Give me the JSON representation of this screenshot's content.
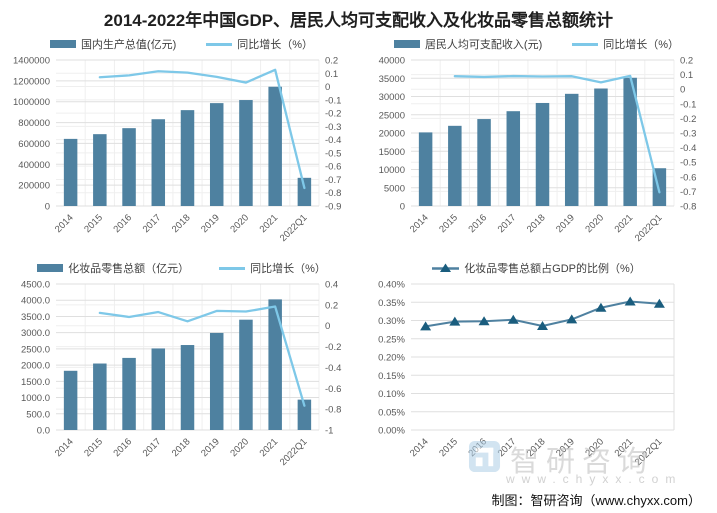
{
  "title": "2014-2022年中国GDP、居民人均可支配收入及化妆品零售总额统计",
  "caption": "制图：智研咨询（www.chyxx.com）",
  "watermark": {
    "brand": "智研咨询",
    "url": "www.chyxx.com"
  },
  "colors": {
    "bar": "#4e81a0",
    "line": "#7ec8e8",
    "ratio_line": "#4f81a0",
    "marker": "#1a5d7e",
    "grid": "#dfdfdf",
    "grid_light": "#efefef",
    "axis_text": "#595959",
    "title_text": "#1f1f1f",
    "watermark_logo": "#aecfe7"
  },
  "chart_data": [
    {
      "id": "gdp",
      "type": "bar",
      "title": "国内生产总值及同比增长",
      "vgrid": true,
      "legend": [
        {
          "type": "bar",
          "label": "国内生产总值(亿元)"
        },
        {
          "type": "line",
          "label": "同比增长（%）"
        }
      ],
      "categories": [
        "2014",
        "2015",
        "2016",
        "2017",
        "2018",
        "2019",
        "2020",
        "2021",
        "2022Q1"
      ],
      "bars": [
        643563,
        688858,
        746395,
        832036,
        919281,
        986515,
        1015986,
        1143670,
        270178
      ],
      "line": {
        "axis": "right",
        "start_index": 1,
        "markers": false,
        "values": [
          0.07,
          0.084,
          0.115,
          0.105,
          0.073,
          0.03,
          0.126,
          -0.764
        ]
      },
      "left_axis": {
        "min": 0,
        "max": 1400000,
        "ticks": [
          "1400000",
          "1200000",
          "1000000",
          "800000",
          "600000",
          "400000",
          "200000",
          "0"
        ]
      },
      "right_axis": {
        "min": -0.9,
        "max": 0.2,
        "ticks": [
          "0.2",
          "0.1",
          "0",
          "-0.1",
          "-0.2",
          "-0.3",
          "-0.4",
          "-0.5",
          "-0.6",
          "-0.7",
          "-0.8",
          "-0.9"
        ]
      }
    },
    {
      "id": "income",
      "type": "bar",
      "title": "居民人均可支配收入及同比增长",
      "vgrid": true,
      "legend": [
        {
          "type": "bar",
          "label": "居民人均可支配收入(元)"
        },
        {
          "type": "line",
          "label": "同比增长（%）"
        }
      ],
      "categories": [
        "2014",
        "2015",
        "2016",
        "2017",
        "2018",
        "2019",
        "2020",
        "2021",
        "2022Q1"
      ],
      "bars": [
        20167,
        21966,
        23821,
        25974,
        28228,
        30733,
        32189,
        35128,
        10345
      ],
      "line": {
        "axis": "right",
        "start_index": 1,
        "markers": false,
        "values": [
          0.089,
          0.084,
          0.09,
          0.087,
          0.089,
          0.047,
          0.091,
          -0.706
        ]
      },
      "left_axis": {
        "min": 0,
        "max": 40000,
        "ticks": [
          "40000",
          "35000",
          "30000",
          "25000",
          "20000",
          "15000",
          "10000",
          "5000",
          "0"
        ]
      },
      "right_axis": {
        "min": -0.8,
        "max": 0.2,
        "ticks": [
          "0.2",
          "0.1",
          "0",
          "-0.1",
          "-0.2",
          "-0.3",
          "-0.4",
          "-0.5",
          "-0.6",
          "-0.7",
          "-0.8"
        ]
      }
    },
    {
      "id": "cosmetics",
      "type": "bar",
      "title": "化妆品零售总额及同比增长",
      "vgrid": true,
      "legend": [
        {
          "type": "bar",
          "label": "化妆品零售总额（亿元）"
        },
        {
          "type": "line",
          "label": "同比增长（%）"
        }
      ],
      "categories": [
        "2014",
        "2015",
        "2016",
        "2017",
        "2018",
        "2019",
        "2020",
        "2021",
        "2022Q1"
      ],
      "bars": [
        1825,
        2049,
        2222,
        2514,
        2619,
        2992,
        3400,
        4026,
        936
      ],
      "line": {
        "axis": "right",
        "start_index": 1,
        "markers": false,
        "values": [
          0.123,
          0.084,
          0.131,
          0.042,
          0.142,
          0.136,
          0.184,
          -0.767
        ]
      },
      "left_axis": {
        "min": 0,
        "max": 4500,
        "ticks": [
          "4500.0",
          "4000.0",
          "3500.0",
          "3000.0",
          "2500.0",
          "2000.0",
          "1500.0",
          "1000.0",
          "500.0",
          "0.0"
        ]
      },
      "right_axis": {
        "min": -1,
        "max": 0.4,
        "ticks": [
          "0.4",
          "0.2",
          "0",
          "-0.2",
          "-0.4",
          "-0.6",
          "-0.8",
          "-1"
        ]
      }
    },
    {
      "id": "ratio",
      "type": "line",
      "title": "化妆品零售总额占GDP的比例",
      "vgrid": false,
      "edge_line": true,
      "legend": [
        {
          "type": "line-marker",
          "label": "化妆品零售总额占GDP的比例（%）"
        }
      ],
      "categories": [
        "2014",
        "2015",
        "2016",
        "2017",
        "2018",
        "2019",
        "2020",
        "2021",
        "2022Q1"
      ],
      "line": {
        "axis": "left",
        "start_index": 0,
        "markers": true,
        "values": [
          0.284,
          0.297,
          0.298,
          0.302,
          0.285,
          0.303,
          0.335,
          0.352,
          0.346
        ]
      },
      "left_axis": {
        "min": 0,
        "max": 0.4,
        "ticks": [
          "0.40%",
          "0.35%",
          "0.30%",
          "0.25%",
          "0.20%",
          "0.15%",
          "0.10%",
          "0.05%",
          "0.00%"
        ]
      }
    }
  ]
}
